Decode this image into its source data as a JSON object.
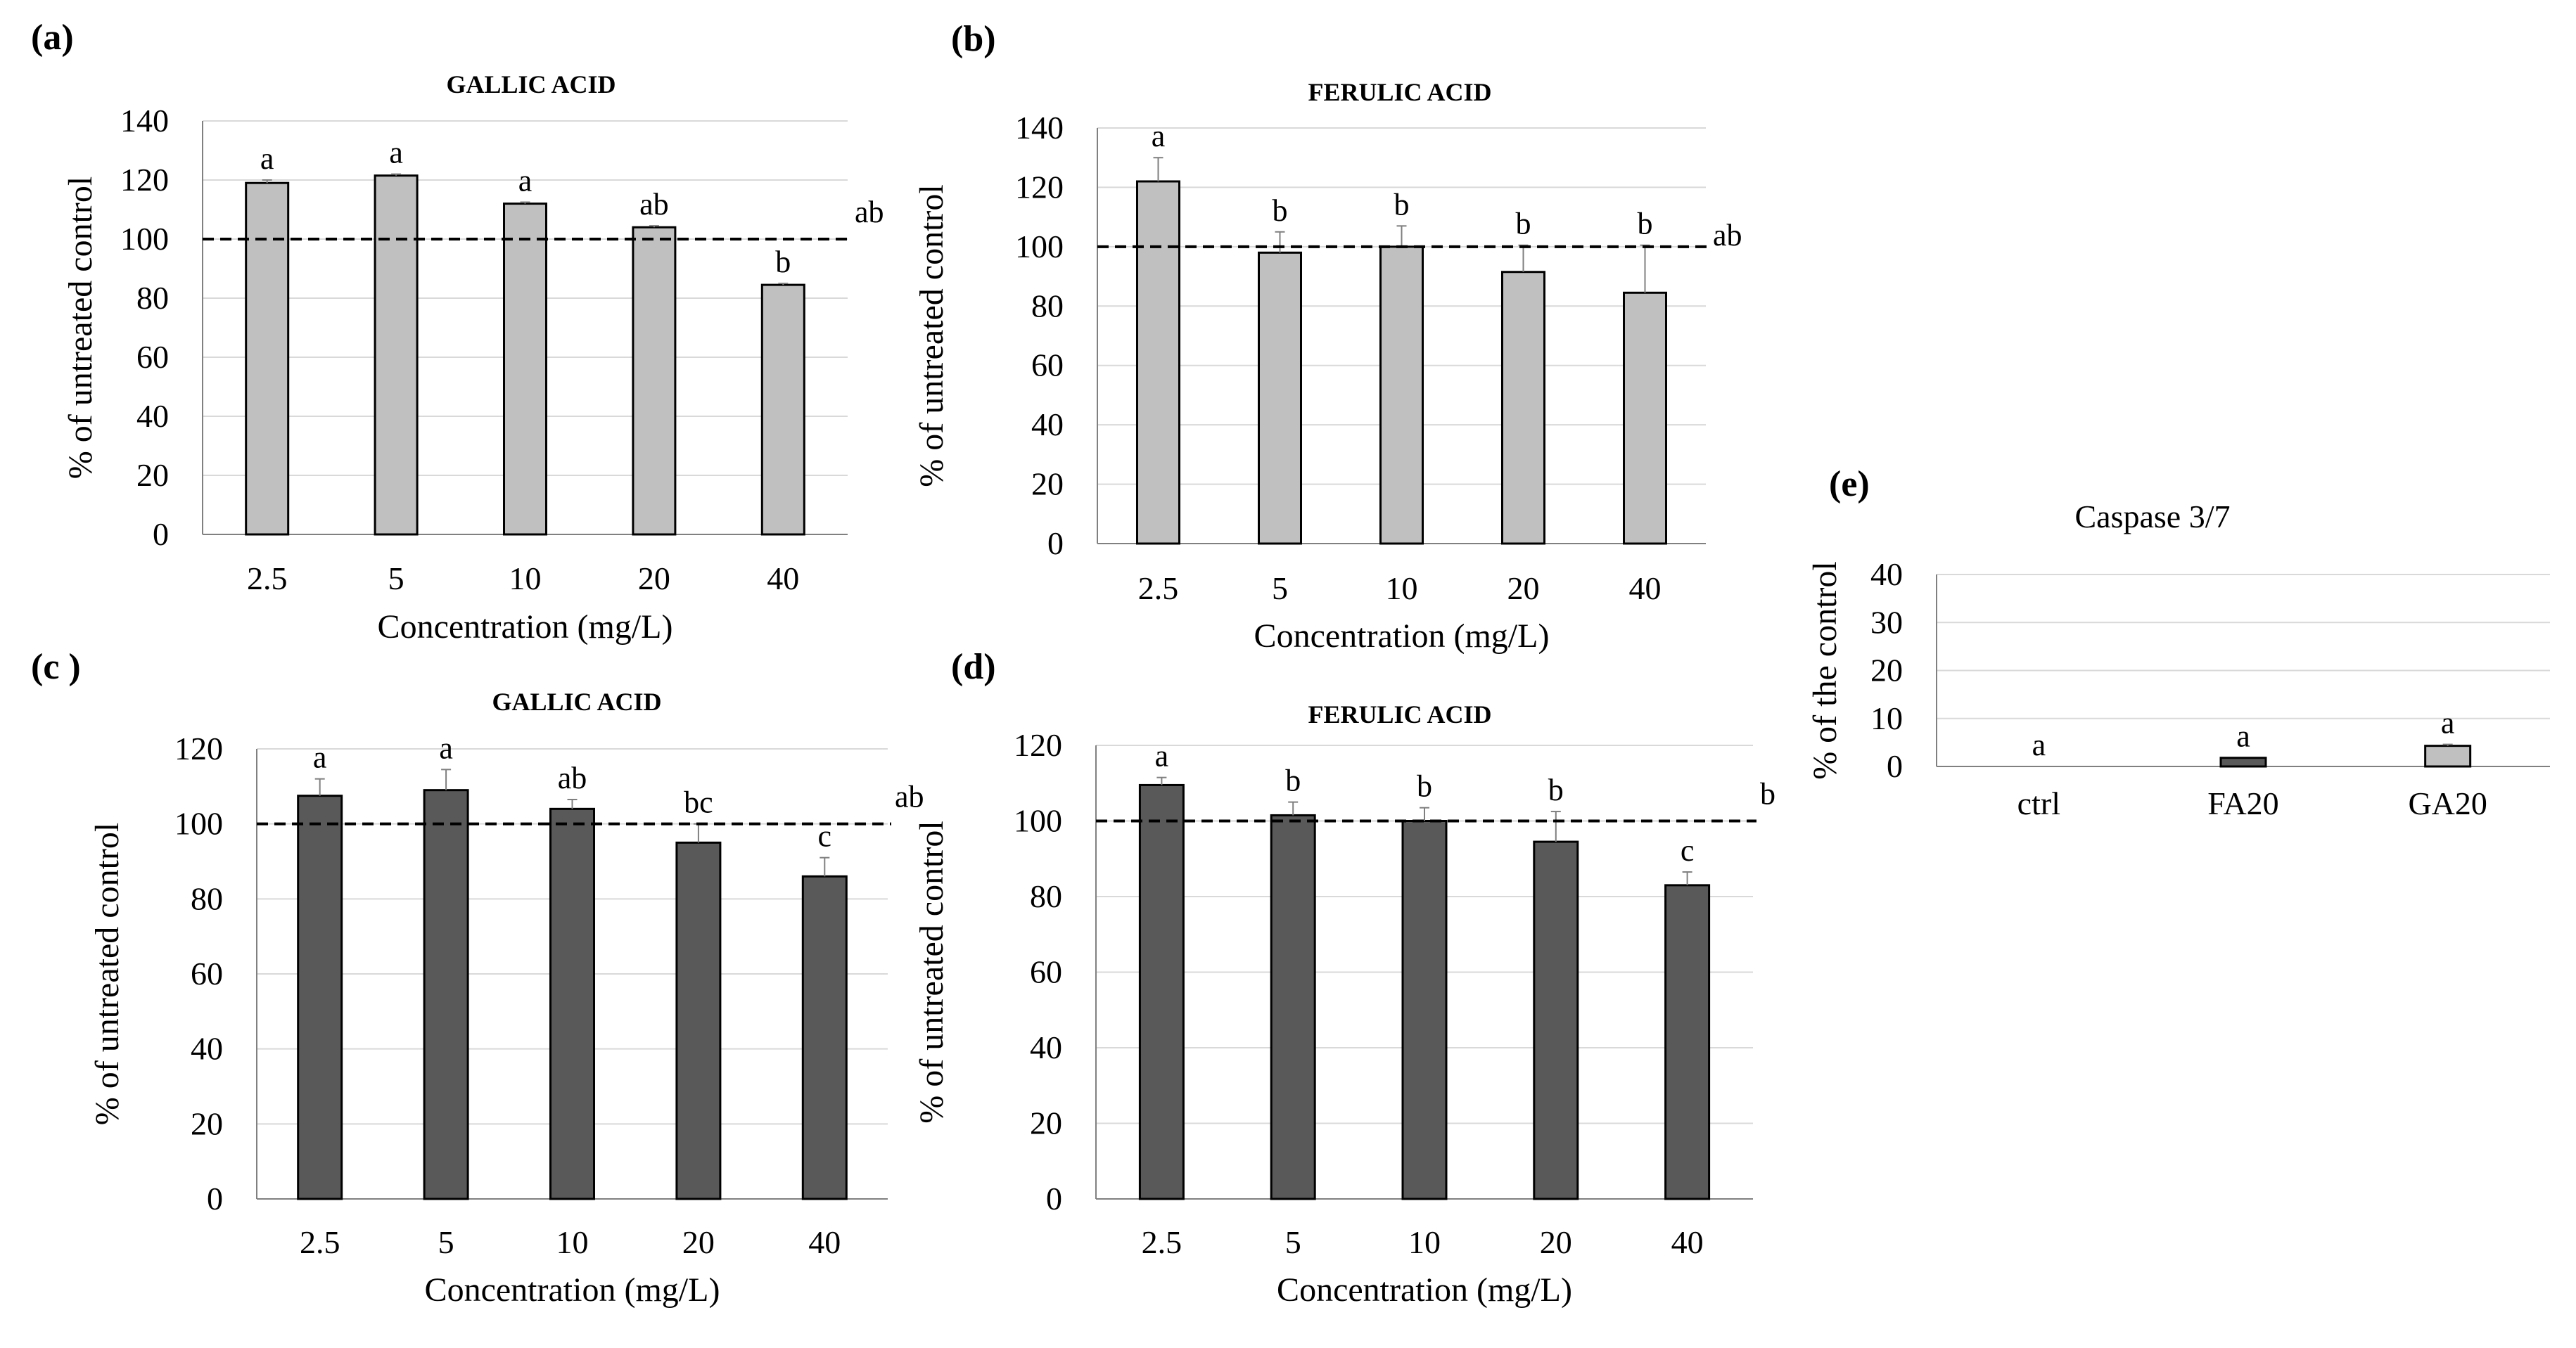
{
  "chart_data": [
    {
      "id": "a",
      "panel_label": "(a)",
      "type": "bar",
      "title": "GALLIC ACID",
      "title_style": "bold",
      "xlabel": "Concentration (mg/L)",
      "ylabel": "% of untreated control",
      "categories": [
        "2.5",
        "5",
        "10",
        "20",
        "40"
      ],
      "values": [
        119,
        121.5,
        112,
        104,
        84.5
      ],
      "errors": [
        1,
        0.5,
        0.5,
        0.5,
        0.5
      ],
      "letters": [
        "a",
        "a",
        "a",
        "ab",
        "b"
      ],
      "reference_line": 100,
      "reference_label": "ab",
      "ylim": [
        0,
        140
      ],
      "yticks": [
        0,
        20,
        40,
        60,
        80,
        100,
        120,
        140
      ],
      "bar_color": "#c0c0c0",
      "grid": true
    },
    {
      "id": "b",
      "panel_label": "(b)",
      "type": "bar",
      "title": "FERULIC ACID",
      "title_style": "bold",
      "xlabel": "Concentration (mg/L)",
      "ylabel": "% of untreated control",
      "categories": [
        "2.5",
        "5",
        "10",
        "20",
        "40"
      ],
      "values": [
        122,
        98,
        100,
        91.5,
        84.5
      ],
      "errors": [
        8,
        7,
        7,
        9,
        16
      ],
      "letters": [
        "a",
        "b",
        "b",
        "b",
        "b"
      ],
      "reference_line": 100,
      "reference_label": "ab",
      "ylim": [
        0,
        140
      ],
      "yticks": [
        0,
        20,
        40,
        60,
        80,
        100,
        120,
        140
      ],
      "bar_color": "#c0c0c0",
      "grid": true
    },
    {
      "id": "c",
      "panel_label": "(c )",
      "type": "bar",
      "title": "GALLIC ACID",
      "title_style": "bold",
      "xlabel": "Concentration (mg/L)",
      "ylabel": "% of untreated control",
      "categories": [
        "2.5",
        "5",
        "10",
        "20",
        "40"
      ],
      "values": [
        107.5,
        109,
        104,
        95,
        86
      ],
      "errors": [
        4.5,
        5.5,
        2.5,
        5,
        5
      ],
      "letters": [
        "a",
        "a",
        "ab",
        "bc",
        "c"
      ],
      "reference_line": 100,
      "reference_label": "ab",
      "ylim": [
        0,
        120
      ],
      "yticks": [
        0,
        20,
        40,
        60,
        80,
        100,
        120
      ],
      "bar_color": "#595959",
      "grid": true
    },
    {
      "id": "d",
      "panel_label": "(d)",
      "type": "bar",
      "title": "FERULIC ACID",
      "title_style": "bold",
      "xlabel": "Concentration (mg/L)",
      "ylabel": "% of untreated control",
      "categories": [
        "2.5",
        "5",
        "10",
        "20",
        "40"
      ],
      "values": [
        109.5,
        101.5,
        100,
        94.5,
        83
      ],
      "errors": [
        2,
        3.5,
        3.5,
        8,
        3.5
      ],
      "letters": [
        "a",
        "b",
        "b",
        "b",
        "c"
      ],
      "reference_line": 100,
      "reference_label": "b",
      "ylim": [
        0,
        120
      ],
      "yticks": [
        0,
        20,
        40,
        60,
        80,
        100,
        120
      ],
      "bar_color": "#595959",
      "grid": true
    },
    {
      "id": "e",
      "panel_label": "(e)",
      "type": "bar",
      "title": "Caspase 3/7",
      "title_style": "plain",
      "xlabel": "",
      "ylabel": "% of the control",
      "categories": [
        "ctrl",
        "FA20",
        "GA20"
      ],
      "values": [
        0,
        1.8,
        4.3
      ],
      "errors": [
        0,
        0,
        0.3
      ],
      "letters": [
        "a",
        "a",
        "a"
      ],
      "bar_colors": [
        "#ffffff",
        "#595959",
        "#c0c0c0"
      ],
      "ylim": [
        0,
        40
      ],
      "yticks": [
        0,
        10,
        20,
        30,
        40
      ],
      "grid": true
    }
  ]
}
